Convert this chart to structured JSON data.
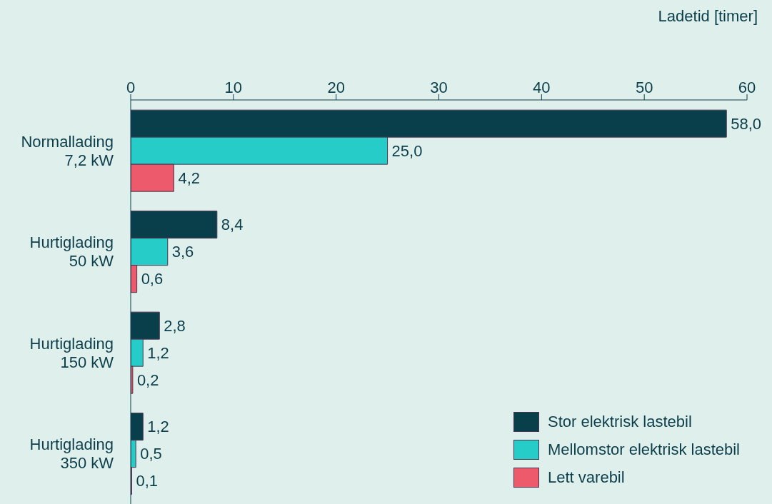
{
  "chart_data": {
    "type": "bar",
    "orientation": "horizontal",
    "xlabel": "Ladetid [timer]",
    "categories": [
      "Normallading\n7,2 kW",
      "Hurtiglading\n50 kW",
      "Hurtiglading\n150 kW",
      "Hurtiglading\n350 kW"
    ],
    "series": [
      {
        "name": "Stor elektrisk lastebil",
        "color": "#093f4b",
        "values": [
          58.0,
          8.4,
          2.8,
          1.2
        ],
        "value_labels": [
          "58,0",
          "8,4",
          "2,8",
          "1,2"
        ]
      },
      {
        "name": "Mellomstor elektrisk lastebil",
        "color": "#26cdc8",
        "values": [
          25.0,
          3.6,
          1.2,
          0.5
        ],
        "value_labels": [
          "25,0",
          "3,6",
          "1,2",
          "0,5"
        ]
      },
      {
        "name": "Lett varebil",
        "color": "#ec5a6b",
        "values": [
          4.2,
          0.6,
          0.2,
          0.1
        ],
        "value_labels": [
          "4,2",
          "0,6",
          "0,2",
          "0,1"
        ]
      }
    ],
    "xlim": [
      0,
      60
    ],
    "xticks": [
      0,
      10,
      20,
      30,
      40,
      50,
      60
    ],
    "grid": false,
    "legend": "bottom right"
  }
}
